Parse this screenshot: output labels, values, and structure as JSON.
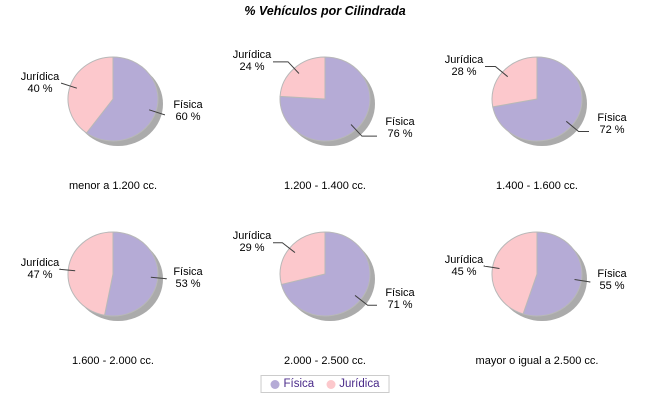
{
  "chart_data": {
    "type": "pie",
    "title": "% Vehículos por Cilindrada",
    "layout": "grid of 6 pies, 2 rows x 3 columns",
    "legend_position": "bottom-center",
    "colors": {
      "fisica": "#b5abd6",
      "juridica": "#fcc8cc",
      "shadow": "#8f8f8f",
      "slice_outline": "#b8b8b8",
      "callout_line": "#404040",
      "legend_text": "#4a2a8a",
      "legend_border": "#cccccc",
      "text": "#000000",
      "background": "#ffffff"
    },
    "legend_items": [
      {
        "label": "Física",
        "color_key": "fisica"
      },
      {
        "label": "Jurídica",
        "color_key": "juridica"
      }
    ],
    "pies": [
      {
        "category": "menor a 1.200 cc.",
        "slices": [
          {
            "name": "Física",
            "pct": 60,
            "pct_label": "60 %"
          },
          {
            "name": "Jurídica",
            "pct": 40,
            "pct_label": "40 %"
          }
        ]
      },
      {
        "category": "1.200 - 1.400 cc.",
        "slices": [
          {
            "name": "Física",
            "pct": 76,
            "pct_label": "76 %"
          },
          {
            "name": "Jurídica",
            "pct": 24,
            "pct_label": "24 %"
          }
        ]
      },
      {
        "category": "1.400 - 1.600 cc.",
        "slices": [
          {
            "name": "Física",
            "pct": 72,
            "pct_label": "72 %"
          },
          {
            "name": "Jurídica",
            "pct": 28,
            "pct_label": "28 %"
          }
        ]
      },
      {
        "category": "1.600 - 2.000 cc.",
        "slices": [
          {
            "name": "Física",
            "pct": 53,
            "pct_label": "53 %"
          },
          {
            "name": "Jurídica",
            "pct": 47,
            "pct_label": "47 %"
          }
        ]
      },
      {
        "category": "2.000 - 2.500 cc.",
        "slices": [
          {
            "name": "Física",
            "pct": 71,
            "pct_label": "71 %"
          },
          {
            "name": "Jurídica",
            "pct": 29,
            "pct_label": "29 %"
          }
        ]
      },
      {
        "category": "mayor o igual a 2.500 cc.",
        "slices": [
          {
            "name": "Física",
            "pct": 55,
            "pct_label": "55 %"
          },
          {
            "name": "Jurídica",
            "pct": 45,
            "pct_label": "45 %"
          }
        ]
      }
    ]
  }
}
